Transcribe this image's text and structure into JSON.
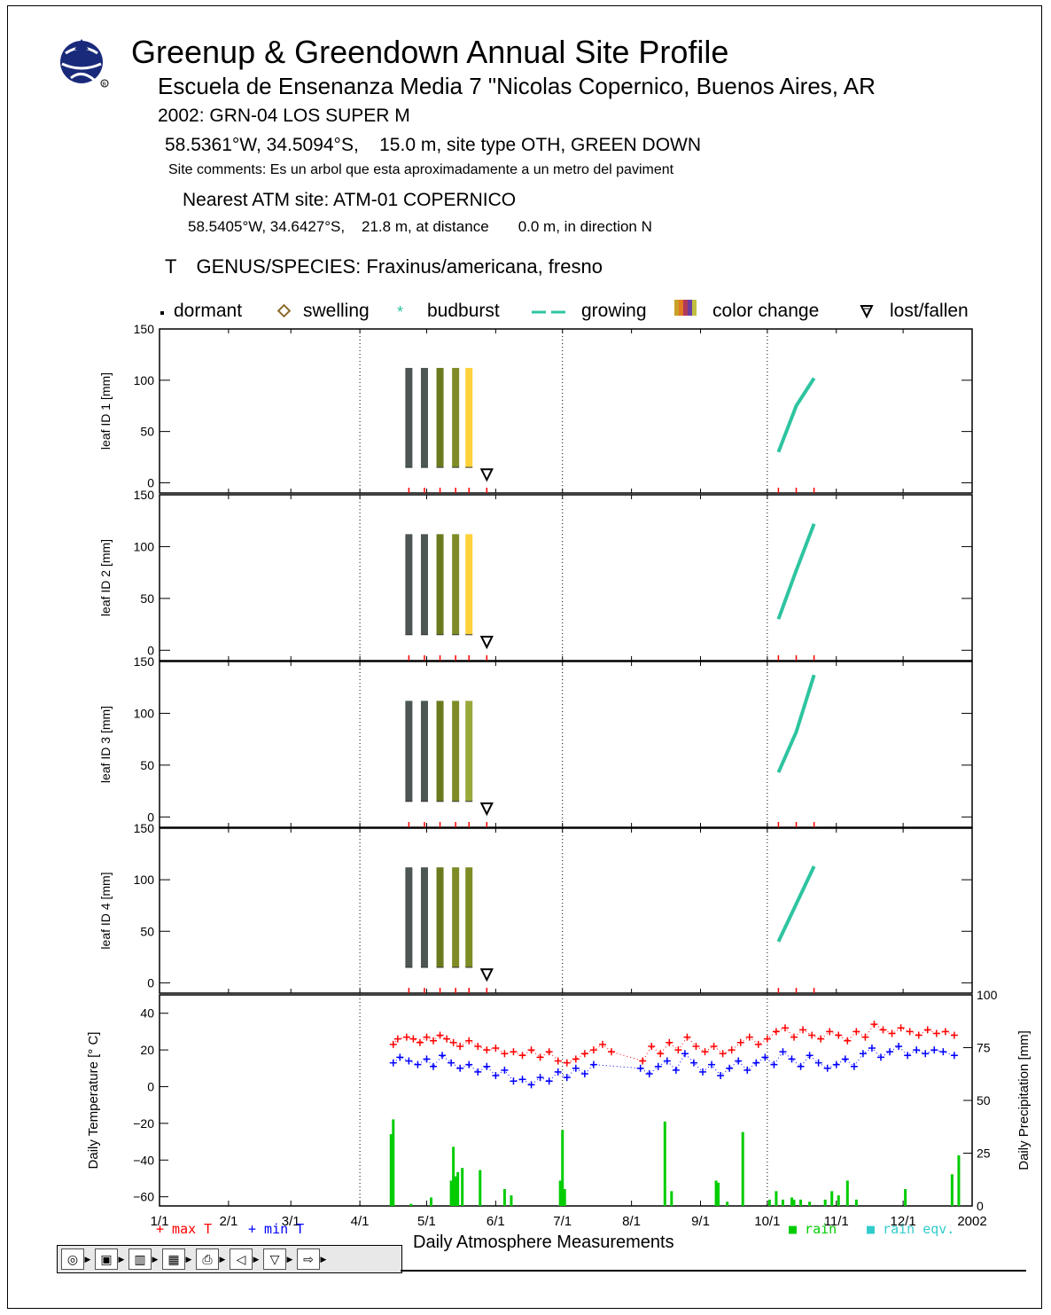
{
  "header": {
    "title": "Greenup & Greendown Annual Site Profile",
    "school": "Escuela de Ensenanza Media 7 \"Nicolas Copernico, Buenos Aires, AR",
    "site_line": "2002:  GRN-04  LOS SUPER M",
    "coords": "58.5361°W, 34.5094°S,    15.0 m, site type OTH, GREEN DOWN",
    "comments": "Site comments:  Es un arbol que esta aproximadamente a un metro del paviment",
    "atm_site": "Nearest ATM site:  ATM-01  COPERNICO",
    "atm_coords": "58.5405°W, 34.6427°S,    21.8 m, at distance       0.0 m, in direction N",
    "species_prefix": "T",
    "species": "GENUS/SPECIES:  Fraxinus/americana, fresno"
  },
  "legend": {
    "dormant": "dormant",
    "swelling": "swelling",
    "budburst": "budburst",
    "growing": "growing",
    "color_change": "color change",
    "lost_fallen": "lost/fallen"
  },
  "colors": {
    "growing": "#2ec4a0",
    "max_t": "#ff0000",
    "min_t": "#0000ff",
    "rain": "#00cc00",
    "rain_eqv": "#33cccc",
    "swelling": "#8b6a2b",
    "color_change_stages": [
      "#4d5555",
      "#4d5555",
      "#6b7a1e",
      "#8a9a2e",
      "#ffd23c"
    ]
  },
  "chart_data": [
    {
      "type": "line",
      "id": "leaf1",
      "ylabel": "leaf ID 1 [mm]",
      "ylim": [
        -10,
        150
      ],
      "yticks": [
        0,
        50,
        100,
        150
      ],
      "color_change": {
        "dates": [
          "2002-04-23",
          "2002-04-30",
          "2002-05-07",
          "2002-05-14",
          "2002-05-20"
        ],
        "low": 15,
        "high": 112,
        "colors": [
          "#4d5555",
          "#4d5555",
          "#6b7a1e",
          "#7f8c25",
          "#ffd23c"
        ]
      },
      "lost_fallen": {
        "date": "2002-05-28",
        "value": 8
      },
      "growing": {
        "dates": [
          "2002-10-06",
          "2002-10-14",
          "2002-10-22"
        ],
        "values": [
          30,
          75,
          102
        ]
      },
      "obs_dates": [
        "2002-04-23",
        "2002-04-30",
        "2002-05-07",
        "2002-05-14",
        "2002-05-20",
        "2002-05-28",
        "2002-10-06",
        "2002-10-14",
        "2002-10-22"
      ]
    },
    {
      "type": "line",
      "id": "leaf2",
      "ylabel": "leaf ID 2 [mm]",
      "ylim": [
        -10,
        150
      ],
      "yticks": [
        0,
        50,
        100,
        150
      ],
      "color_change": {
        "dates": [
          "2002-04-23",
          "2002-04-30",
          "2002-05-07",
          "2002-05-14",
          "2002-05-20"
        ],
        "low": 15,
        "high": 112,
        "colors": [
          "#4d5555",
          "#4d5555",
          "#6b7a1e",
          "#7f8c25",
          "#ffd23c"
        ]
      },
      "lost_fallen": {
        "date": "2002-05-28",
        "value": 8
      },
      "growing": {
        "dates": [
          "2002-10-06",
          "2002-10-14",
          "2002-10-22"
        ],
        "values": [
          30,
          77,
          122
        ]
      },
      "obs_dates": [
        "2002-04-23",
        "2002-04-30",
        "2002-05-07",
        "2002-05-14",
        "2002-05-20",
        "2002-05-28",
        "2002-10-06",
        "2002-10-14",
        "2002-10-22"
      ]
    },
    {
      "type": "line",
      "id": "leaf3",
      "ylabel": "leaf ID 3 [mm]",
      "ylim": [
        -10,
        150
      ],
      "yticks": [
        0,
        50,
        100,
        150
      ],
      "color_change": {
        "dates": [
          "2002-04-23",
          "2002-04-30",
          "2002-05-07",
          "2002-05-14",
          "2002-05-20"
        ],
        "low": 15,
        "high": 112,
        "colors": [
          "#4d5555",
          "#4d5555",
          "#6b7a1e",
          "#7f8c25",
          "#9aa83a"
        ]
      },
      "lost_fallen": {
        "date": "2002-05-28",
        "value": 8
      },
      "growing": {
        "dates": [
          "2002-10-06",
          "2002-10-14",
          "2002-10-22"
        ],
        "values": [
          43,
          82,
          137
        ]
      },
      "obs_dates": [
        "2002-04-23",
        "2002-04-30",
        "2002-05-07",
        "2002-05-14",
        "2002-05-20",
        "2002-05-28",
        "2002-10-06",
        "2002-10-14",
        "2002-10-22"
      ]
    },
    {
      "type": "line",
      "id": "leaf4",
      "ylabel": "leaf ID 4 [mm]",
      "ylim": [
        -10,
        150
      ],
      "yticks": [
        0,
        50,
        100,
        150
      ],
      "color_change": {
        "dates": [
          "2002-04-23",
          "2002-04-30",
          "2002-05-07",
          "2002-05-14",
          "2002-05-20"
        ],
        "low": 15,
        "high": 112,
        "colors": [
          "#4d5555",
          "#4d5555",
          "#6b7a1e",
          "#7f8c25",
          "#7f8c25"
        ]
      },
      "lost_fallen": {
        "date": "2002-05-28",
        "value": 8
      },
      "growing": {
        "dates": [
          "2002-10-06",
          "2002-10-22"
        ],
        "values": [
          40,
          113
        ]
      },
      "obs_dates": [
        "2002-04-23",
        "2002-04-30",
        "2002-05-07",
        "2002-05-14",
        "2002-05-20",
        "2002-05-28",
        "2002-10-06",
        "2002-10-14",
        "2002-10-22"
      ]
    },
    {
      "type": "scatter",
      "id": "atmosphere",
      "title": "Daily Atmosphere Measurements",
      "ylabel": "Daily Temperature [° C]",
      "y2label": "Daily Precipitation [mm]",
      "ylim": [
        -65,
        50
      ],
      "yticks": [
        -60,
        -40,
        -20,
        0,
        20,
        40
      ],
      "y2lim": [
        0,
        100
      ],
      "y2ticks": [
        0,
        25,
        50,
        75,
        100
      ],
      "xticks": [
        "1/1",
        "2/1",
        "3/1",
        "4/1",
        "5/1",
        "6/1",
        "7/1",
        "8/1",
        "9/1",
        "10/1",
        "11/1",
        "12/1",
        "2002"
      ],
      "series_labels": {
        "max_t": "+ max T",
        "min_t": "+ min T",
        "rain": "■ rain",
        "rain_eqv": "■ rain eqv."
      },
      "max_t": [
        [
          "2002-04-16",
          23
        ],
        [
          "2002-04-18",
          26
        ],
        [
          "2002-04-22",
          27
        ],
        [
          "2002-04-25",
          26
        ],
        [
          "2002-04-28",
          24
        ],
        [
          "2002-05-01",
          27
        ],
        [
          "2002-05-04",
          25
        ],
        [
          "2002-05-07",
          28
        ],
        [
          "2002-05-10",
          26
        ],
        [
          "2002-05-13",
          24
        ],
        [
          "2002-05-16",
          22
        ],
        [
          "2002-05-20",
          25
        ],
        [
          "2002-05-24",
          22
        ],
        [
          "2002-05-28",
          20
        ],
        [
          "2002-06-01",
          21
        ],
        [
          "2002-06-05",
          18
        ],
        [
          "2002-06-09",
          19
        ],
        [
          "2002-06-13",
          17
        ],
        [
          "2002-06-17",
          20
        ],
        [
          "2002-06-21",
          16
        ],
        [
          "2002-06-25",
          19
        ],
        [
          "2002-06-29",
          14
        ],
        [
          "2002-07-03",
          13
        ],
        [
          "2002-07-07",
          15
        ],
        [
          "2002-07-11",
          18
        ],
        [
          "2002-07-15",
          20
        ],
        [
          "2002-07-19",
          23
        ],
        [
          "2002-07-23",
          19
        ],
        [
          "2002-08-06",
          14
        ],
        [
          "2002-08-10",
          22
        ],
        [
          "2002-08-14",
          18
        ],
        [
          "2002-08-18",
          24
        ],
        [
          "2002-08-22",
          20
        ],
        [
          "2002-08-26",
          27
        ],
        [
          "2002-08-30",
          22
        ],
        [
          "2002-09-03",
          19
        ],
        [
          "2002-09-07",
          22
        ],
        [
          "2002-09-11",
          18
        ],
        [
          "2002-09-15",
          20
        ],
        [
          "2002-09-19",
          24
        ],
        [
          "2002-09-23",
          27
        ],
        [
          "2002-09-27",
          23
        ],
        [
          "2002-10-01",
          26
        ],
        [
          "2002-10-05",
          30
        ],
        [
          "2002-10-09",
          32
        ],
        [
          "2002-10-13",
          27
        ],
        [
          "2002-10-17",
          31
        ],
        [
          "2002-10-21",
          28
        ],
        [
          "2002-10-25",
          26
        ],
        [
          "2002-10-29",
          30
        ],
        [
          "2002-11-02",
          28
        ],
        [
          "2002-11-06",
          25
        ],
        [
          "2002-11-10",
          30
        ],
        [
          "2002-11-14",
          27
        ],
        [
          "2002-11-18",
          34
        ],
        [
          "2002-11-22",
          31
        ],
        [
          "2002-11-26",
          29
        ],
        [
          "2002-11-30",
          32
        ],
        [
          "2002-12-04",
          30
        ],
        [
          "2002-12-08",
          28
        ],
        [
          "2002-12-12",
          31
        ],
        [
          "2002-12-16",
          29
        ],
        [
          "2002-12-20",
          30
        ],
        [
          "2002-12-24",
          28
        ]
      ],
      "min_t": [
        [
          "2002-04-16",
          13
        ],
        [
          "2002-04-19",
          16
        ],
        [
          "2002-04-23",
          14
        ],
        [
          "2002-04-27",
          12
        ],
        [
          "2002-05-01",
          15
        ],
        [
          "2002-05-04",
          11
        ],
        [
          "2002-05-08",
          17
        ],
        [
          "2002-05-12",
          13
        ],
        [
          "2002-05-16",
          10
        ],
        [
          "2002-05-20",
          12
        ],
        [
          "2002-05-24",
          8
        ],
        [
          "2002-05-28",
          11
        ],
        [
          "2002-06-01",
          6
        ],
        [
          "2002-06-05",
          9
        ],
        [
          "2002-06-09",
          3
        ],
        [
          "2002-06-13",
          4
        ],
        [
          "2002-06-17",
          1
        ],
        [
          "2002-06-21",
          5
        ],
        [
          "2002-06-25",
          3
        ],
        [
          "2002-06-29",
          8
        ],
        [
          "2002-07-03",
          5
        ],
        [
          "2002-07-07",
          10
        ],
        [
          "2002-07-11",
          7
        ],
        [
          "2002-07-15",
          12
        ],
        [
          "2002-08-05",
          10
        ],
        [
          "2002-08-09",
          7
        ],
        [
          "2002-08-13",
          11
        ],
        [
          "2002-08-17",
          14
        ],
        [
          "2002-08-21",
          9
        ],
        [
          "2002-08-25",
          18
        ],
        [
          "2002-08-29",
          13
        ],
        [
          "2002-09-02",
          8
        ],
        [
          "2002-09-06",
          12
        ],
        [
          "2002-09-10",
          6
        ],
        [
          "2002-09-14",
          10
        ],
        [
          "2002-09-18",
          14
        ],
        [
          "2002-09-22",
          9
        ],
        [
          "2002-09-26",
          13
        ],
        [
          "2002-09-30",
          16
        ],
        [
          "2002-10-04",
          12
        ],
        [
          "2002-10-08",
          19
        ],
        [
          "2002-10-12",
          15
        ],
        [
          "2002-10-16",
          11
        ],
        [
          "2002-10-20",
          17
        ],
        [
          "2002-10-24",
          13
        ],
        [
          "2002-10-28",
          10
        ],
        [
          "2002-11-01",
          12
        ],
        [
          "2002-11-05",
          15
        ],
        [
          "2002-11-09",
          11
        ],
        [
          "2002-11-13",
          18
        ],
        [
          "2002-11-17",
          21
        ],
        [
          "2002-11-21",
          16
        ],
        [
          "2002-11-25",
          19
        ],
        [
          "2002-11-29",
          22
        ],
        [
          "2002-12-03",
          17
        ],
        [
          "2002-12-07",
          20
        ],
        [
          "2002-12-11",
          18
        ],
        [
          "2002-12-15",
          20
        ],
        [
          "2002-12-19",
          19
        ],
        [
          "2002-12-24",
          17
        ]
      ],
      "rain": [
        [
          "2002-04-15",
          34
        ],
        [
          "2002-04-16",
          41
        ],
        [
          "2002-04-24",
          1
        ],
        [
          "2002-05-03",
          4
        ],
        [
          "2002-05-12",
          12
        ],
        [
          "2002-05-13",
          28
        ],
        [
          "2002-05-14",
          14
        ],
        [
          "2002-05-15",
          16
        ],
        [
          "2002-05-17",
          18
        ],
        [
          "2002-05-25",
          17
        ],
        [
          "2002-06-05",
          8
        ],
        [
          "2002-06-08",
          5
        ],
        [
          "2002-06-30",
          12
        ],
        [
          "2002-07-01",
          36
        ],
        [
          "2002-07-02",
          8
        ],
        [
          "2002-08-16",
          40
        ],
        [
          "2002-08-19",
          7
        ],
        [
          "2002-09-08",
          12
        ],
        [
          "2002-09-09",
          11
        ],
        [
          "2002-09-13",
          2
        ],
        [
          "2002-09-20",
          35
        ],
        [
          "2002-10-02",
          3
        ],
        [
          "2002-10-05",
          7
        ],
        [
          "2002-10-08",
          3
        ],
        [
          "2002-10-12",
          4
        ],
        [
          "2002-10-13",
          3
        ],
        [
          "2002-10-16",
          3
        ],
        [
          "2002-10-20",
          2
        ],
        [
          "2002-10-27",
          3
        ],
        [
          "2002-10-30",
          7
        ],
        [
          "2002-11-02",
          5
        ],
        [
          "2002-11-06",
          12
        ],
        [
          "2002-11-10",
          3
        ],
        [
          "2002-12-02",
          8
        ],
        [
          "2002-12-23",
          15
        ],
        [
          "2002-12-26",
          24
        ]
      ]
    }
  ],
  "toolbar": {
    "buttons": [
      "◎",
      "▣",
      "▥",
      "▦",
      "⎙",
      "◁",
      "▽",
      "⇨"
    ]
  }
}
